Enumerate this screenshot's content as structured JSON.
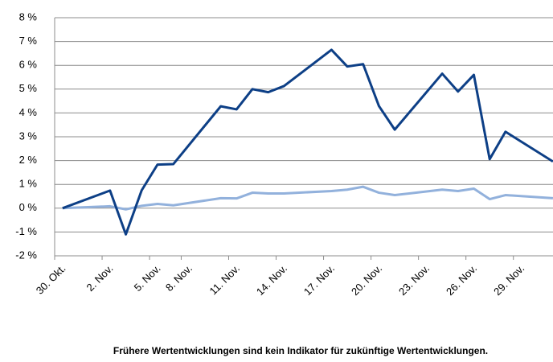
{
  "chart_data": {
    "type": "line",
    "categories": [
      "30. Okt.",
      null,
      null,
      "2. Nov.",
      null,
      null,
      "5. Nov.",
      null,
      "8. Nov.",
      null,
      null,
      "11. Nov.",
      null,
      null,
      "14. Nov.",
      null,
      null,
      "17. Nov.",
      null,
      null,
      "20. Nov.",
      null,
      null,
      "23. Nov.",
      null,
      null,
      "26. Nov.",
      null,
      null,
      "29. Nov.",
      null,
      null
    ],
    "series": [
      {
        "color": "#0d3f86",
        "values": [
          0,
          null,
          null,
          0.74,
          -1.1,
          0.75,
          1.83,
          1.85,
          null,
          null,
          4.28,
          4.15,
          5.0,
          4.87,
          5.13,
          null,
          null,
          6.65,
          5.95,
          6.05,
          4.29,
          3.3,
          null,
          null,
          5.65,
          4.9,
          5.6,
          2.06,
          3.21,
          null,
          null,
          1.96
        ]
      },
      {
        "color": "#92b1dc",
        "values": [
          0,
          null,
          null,
          0.08,
          -0.05,
          0.1,
          0.18,
          0.12,
          null,
          null,
          0.42,
          0.41,
          0.65,
          0.62,
          0.62,
          null,
          null,
          0.72,
          0.78,
          0.9,
          0.65,
          0.55,
          null,
          null,
          0.78,
          0.72,
          0.82,
          0.38,
          0.55,
          null,
          null,
          0.42
        ]
      }
    ],
    "connect_gaps": true,
    "ylim": [
      -2,
      8
    ],
    "yticks": [
      {
        "value": -2,
        "label": "-2 %"
      },
      {
        "value": -1,
        "label": "-1 %"
      },
      {
        "value": 0,
        "label": "0 %"
      },
      {
        "value": 1,
        "label": "1 %"
      },
      {
        "value": 2,
        "label": "2 %"
      },
      {
        "value": 3,
        "label": "3 %"
      },
      {
        "value": 4,
        "label": "4 %"
      },
      {
        "value": 5,
        "label": "5 %"
      },
      {
        "value": 6,
        "label": "6 %"
      },
      {
        "value": 7,
        "label": "7 %"
      },
      {
        "value": 8,
        "label": "8 %"
      }
    ],
    "grid": true,
    "footnote": "Frühere Wertentwicklungen sind kein Indikator für zukünftige Wertentwicklungen."
  }
}
